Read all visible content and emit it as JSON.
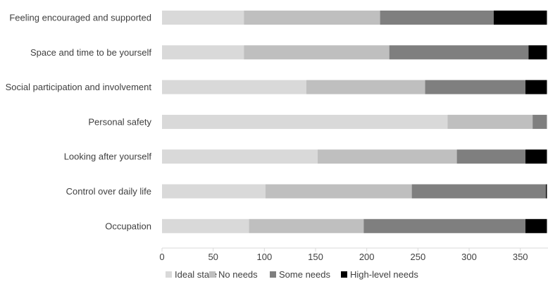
{
  "chart_data": {
    "type": "bar",
    "orientation": "horizontal",
    "stacked": true,
    "title": "",
    "xlabel": "",
    "ylabel": "",
    "categories": [
      "Feeling encouraged and supported",
      "Space and time to be yourself",
      "Social participation and involvement",
      "Personal safety",
      "Looking after yourself",
      "Control over daily life",
      "Occupation"
    ],
    "series": [
      {
        "name": "Ideal state",
        "color": "#d9d9d9",
        "values": [
          80,
          80,
          141,
          279,
          152,
          101,
          85
        ]
      },
      {
        "name": "No needs",
        "color": "#bfbfbf",
        "values": [
          133,
          142,
          116,
          83,
          136,
          143,
          112
        ]
      },
      {
        "name": "Some needs",
        "color": "#7f7f7f",
        "values": [
          111,
          136,
          98,
          14,
          67,
          131,
          158
        ]
      },
      {
        "name": "High-level needs",
        "color": "#000000",
        "values": [
          52,
          18,
          21,
          0,
          21,
          1,
          21
        ]
      }
    ],
    "xlim": [
      0,
      376
    ],
    "xticks": [
      "0",
      "50",
      "100",
      "150",
      "200",
      "250",
      "300",
      "350"
    ],
    "grid": false,
    "legend": "bottom"
  }
}
